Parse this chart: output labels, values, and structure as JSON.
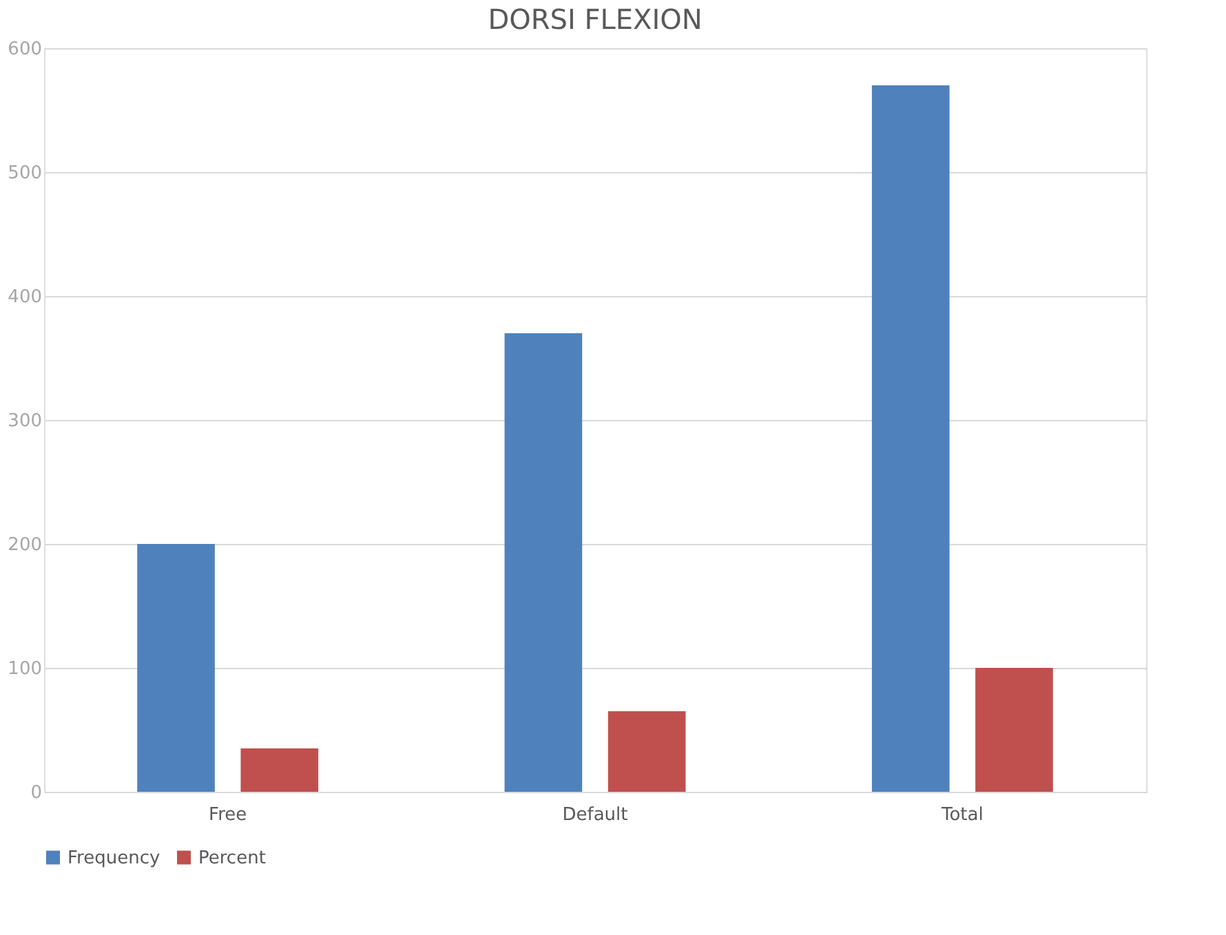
{
  "chart_data": {
    "type": "bar",
    "title": "DORSI FLEXION",
    "categories": [
      "Free",
      "Default",
      "Total"
    ],
    "series": [
      {
        "name": "Frequency",
        "color": "#4f81bd",
        "values": [
          200,
          370,
          570
        ]
      },
      {
        "name": "Percent",
        "color": "#c0504d",
        "values": [
          35,
          65,
          100
        ]
      }
    ],
    "ylim": [
      0,
      600
    ],
    "yticks": [
      0,
      100,
      200,
      300,
      400,
      500,
      600
    ],
    "grid": "y",
    "legend": "bottom"
  }
}
